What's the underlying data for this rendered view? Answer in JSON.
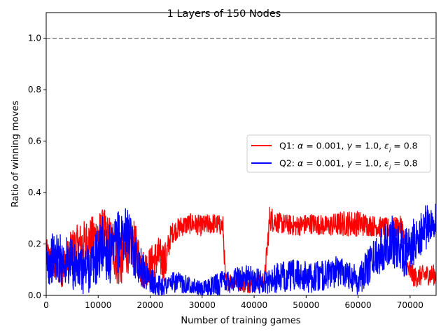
{
  "chart_data": {
    "type": "line",
    "title": "1 Layers of 150 Nodes",
    "xlabel": "Number of training games",
    "ylabel": "Ratio of winning moves",
    "xlim": [
      0,
      75000
    ],
    "ylim": [
      0,
      1.1
    ],
    "x_ticks": [
      0,
      10000,
      20000,
      30000,
      40000,
      50000,
      60000,
      70000
    ],
    "x_tick_labels": [
      "0",
      "10000",
      "20000",
      "30000",
      "40000",
      "50000",
      "60000",
      "70000"
    ],
    "y_ticks": [
      0.0,
      0.2,
      0.4,
      0.6,
      0.8,
      1.0
    ],
    "y_tick_labels": [
      "0.0",
      "0.2",
      "0.4",
      "0.6",
      "0.8",
      "1.0"
    ],
    "grid": false,
    "legend_position": "center-right",
    "reference_line": {
      "y": 1.0,
      "style": "dashed",
      "color": "#808080"
    },
    "series": [
      {
        "name": "Q1: α = 0.001, γ = 1.0, εi = 0.8",
        "legend": {
          "prefix": "Q1: ",
          "alpha": "0.001",
          "gamma": "1.0",
          "eps": "0.8"
        },
        "color": "#ff0000",
        "x": [
          0,
          1500,
          3000,
          5000,
          7000,
          9000,
          11000,
          12500,
          14000,
          15500,
          17000,
          18500,
          20000,
          21500,
          23000,
          24000,
          26000,
          28000,
          30000,
          32000,
          34000,
          34500,
          36000,
          38000,
          40000,
          42000,
          43000,
          45000,
          48000,
          51000,
          54000,
          57000,
          60000,
          63000,
          66000,
          68500,
          69500,
          71000,
          73000,
          75000
        ],
        "y": [
          0.15,
          0.12,
          0.1,
          0.18,
          0.2,
          0.22,
          0.25,
          0.2,
          0.12,
          0.18,
          0.2,
          0.1,
          0.12,
          0.15,
          0.13,
          0.24,
          0.27,
          0.28,
          0.27,
          0.28,
          0.27,
          0.05,
          0.06,
          0.05,
          0.04,
          0.06,
          0.3,
          0.28,
          0.27,
          0.28,
          0.27,
          0.28,
          0.28,
          0.27,
          0.26,
          0.27,
          0.1,
          0.07,
          0.08,
          0.08
        ],
        "amplitude": [
          0.07,
          0.07,
          0.07,
          0.08,
          0.09,
          0.09,
          0.09,
          0.1,
          0.1,
          0.1,
          0.09,
          0.08,
          0.07,
          0.08,
          0.08,
          0.04,
          0.04,
          0.04,
          0.04,
          0.04,
          0.04,
          0.04,
          0.03,
          0.04,
          0.03,
          0.04,
          0.05,
          0.04,
          0.04,
          0.04,
          0.04,
          0.05,
          0.05,
          0.04,
          0.04,
          0.04,
          0.05,
          0.04,
          0.04,
          0.04
        ]
      },
      {
        "name": "Q2: α = 0.001, γ = 1.0, εi = 0.8",
        "legend": {
          "prefix": "Q2: ",
          "alpha": "0.001",
          "gamma": "1.0",
          "eps": "0.8"
        },
        "color": "#0000ff",
        "x": [
          0,
          1500,
          3000,
          5000,
          7000,
          9000,
          11000,
          12500,
          14000,
          15500,
          17000,
          18500,
          20000,
          21500,
          23000,
          24000,
          26000,
          28000,
          30000,
          32000,
          34000,
          34500,
          36000,
          38000,
          40000,
          42000,
          43000,
          45000,
          48000,
          51000,
          54000,
          57000,
          60000,
          63000,
          66000,
          68500,
          69500,
          71000,
          73000,
          75000
        ],
        "y": [
          0.12,
          0.15,
          0.14,
          0.12,
          0.1,
          0.12,
          0.2,
          0.14,
          0.22,
          0.25,
          0.16,
          0.1,
          0.06,
          0.04,
          0.04,
          0.05,
          0.05,
          0.04,
          0.02,
          0.04,
          0.05,
          0.06,
          0.06,
          0.07,
          0.06,
          0.05,
          0.06,
          0.07,
          0.08,
          0.07,
          0.08,
          0.1,
          0.06,
          0.14,
          0.22,
          0.18,
          0.16,
          0.22,
          0.26,
          0.3
        ],
        "amplitude": [
          0.09,
          0.1,
          0.1,
          0.1,
          0.1,
          0.1,
          0.12,
          0.12,
          0.12,
          0.1,
          0.09,
          0.07,
          0.05,
          0.04,
          0.04,
          0.04,
          0.04,
          0.03,
          0.03,
          0.04,
          0.05,
          0.05,
          0.05,
          0.05,
          0.05,
          0.05,
          0.05,
          0.06,
          0.06,
          0.06,
          0.06,
          0.06,
          0.06,
          0.08,
          0.1,
          0.1,
          0.1,
          0.09,
          0.09,
          0.06
        ]
      }
    ]
  }
}
